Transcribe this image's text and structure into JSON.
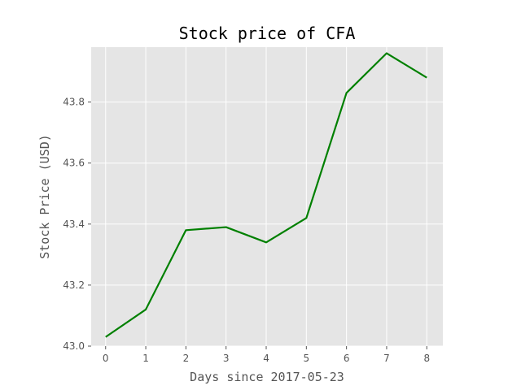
{
  "chart_data": {
    "type": "line",
    "title": "Stock price of CFA",
    "xlabel": "Days since 2017-05-23",
    "ylabel": "Stock Price (USD)",
    "x": [
      0,
      1,
      2,
      3,
      4,
      5,
      6,
      7,
      8
    ],
    "series": [
      {
        "values": [
          43.03,
          43.12,
          43.38,
          43.39,
          43.34,
          43.42,
          43.83,
          43.96,
          43.88
        ],
        "color": "#008000"
      }
    ],
    "xlim": [
      -0.36,
      8.4
    ],
    "ylim": [
      43.0,
      43.98
    ],
    "xticks": [
      0,
      1,
      2,
      3,
      4,
      5,
      6,
      7,
      8
    ],
    "yticks": [
      43.0,
      43.2,
      43.4,
      43.6,
      43.8
    ],
    "ytick_labels": [
      "43.0",
      "43.2",
      "43.4",
      "43.6",
      "43.8"
    ],
    "grid": true,
    "background": "#e5e5e5"
  }
}
